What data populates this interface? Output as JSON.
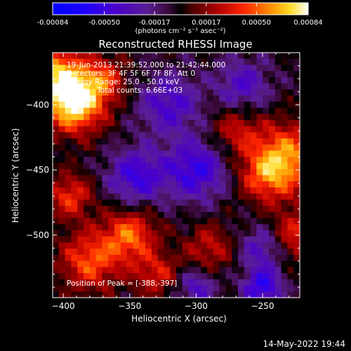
{
  "colorbar": {
    "tick_labels": [
      "-0.00084",
      "-0.00050",
      "-0.00017",
      "0.00017",
      "0.00050",
      "0.00084"
    ],
    "unit_label": "(photons cm⁻² s⁻¹ asec⁻²)",
    "range": [
      -0.00084,
      0.00084
    ]
  },
  "chart_data": {
    "type": "heatmap",
    "title": "Reconstructed RHESSI Image",
    "xlabel": "Heliocentric X (arcsec)",
    "ylabel": "Heliocentric Y (arcsec)",
    "xlim": [
      -408,
      -222
    ],
    "ylim": [
      -548,
      -360
    ],
    "x_ticks": [
      -400,
      -350,
      -300,
      -250
    ],
    "y_ticks": [
      -400,
      -450,
      -500
    ],
    "x_tick_labels": [
      "−400",
      "−350",
      "−300",
      "−250"
    ],
    "y_tick_labels": [
      "−400",
      "−450",
      "−500"
    ],
    "annotations": {
      "time_range": "19-Jun-2013 21:39:52.000 to 21:42:44.000",
      "detectors": "Detectors: 3F 4F 5F 6F 7F 8F, Att 0",
      "energy_range": "Energy Range: 25.0 - 50.0 keV",
      "method": "Clean    Total counts: 6.66E+03",
      "peak_position": "Position of Peak = [-388,-397]"
    },
    "peak": [
      -388,
      -397
    ],
    "grid": false
  },
  "footer": {
    "timestamp": "14-May-2022 19:44"
  },
  "colors": {
    "background": "#000000",
    "foreground": "#ffffff"
  }
}
